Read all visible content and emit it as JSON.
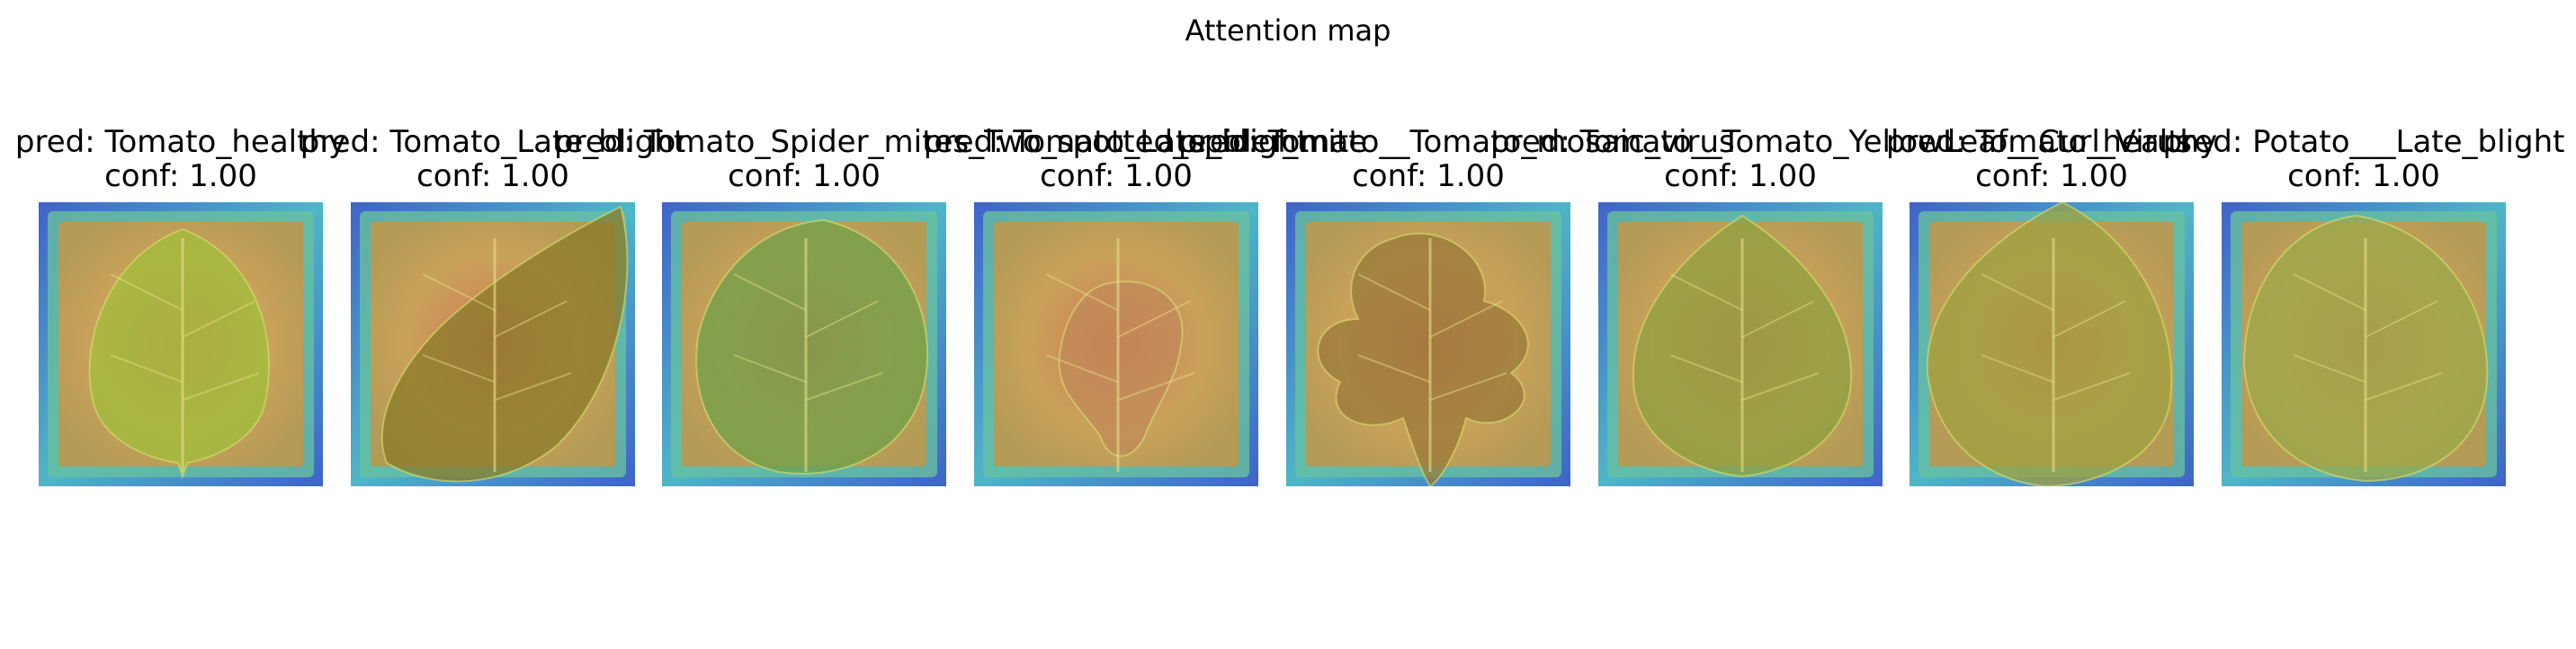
{
  "figure": {
    "title": "Attention map"
  },
  "panels": [
    {
      "title": "pred: Tomato_healthy",
      "conf": "conf: 1.00",
      "leaf": "oval",
      "tone": "#9fbf3a"
    },
    {
      "title": "pred: Tomato_Late_blight",
      "conf": "conf: 1.00",
      "leaf": "diag",
      "tone": "#8a7a2a"
    },
    {
      "title": "pred: Tomato_Spider_mites_Two_spotted_spider_mite",
      "conf": "conf: 1.00",
      "leaf": "round",
      "tone": "#6fa04a"
    },
    {
      "title": "pred: Tomato_Late_blight",
      "conf": "conf: 1.00",
      "leaf": "small",
      "tone": "#c08a5a"
    },
    {
      "title": "pred: Tomato__Tomato_mosaic_virus",
      "conf": "conf: 1.00",
      "leaf": "lobed",
      "tone": "#9a7a3a"
    },
    {
      "title": "pred: Tomato__Tomato_YellowLeaf__Curl_Virus",
      "conf": "conf: 1.00",
      "leaf": "heart",
      "tone": "#8fa040"
    },
    {
      "title": "pred: Tomato_healthy",
      "conf": "conf: 1.00",
      "leaf": "broad",
      "tone": "#9fa040"
    },
    {
      "title": "pred: Potato___Late_blight",
      "conf": "conf: 1.00",
      "leaf": "oval2",
      "tone": "#9aa84a"
    }
  ]
}
